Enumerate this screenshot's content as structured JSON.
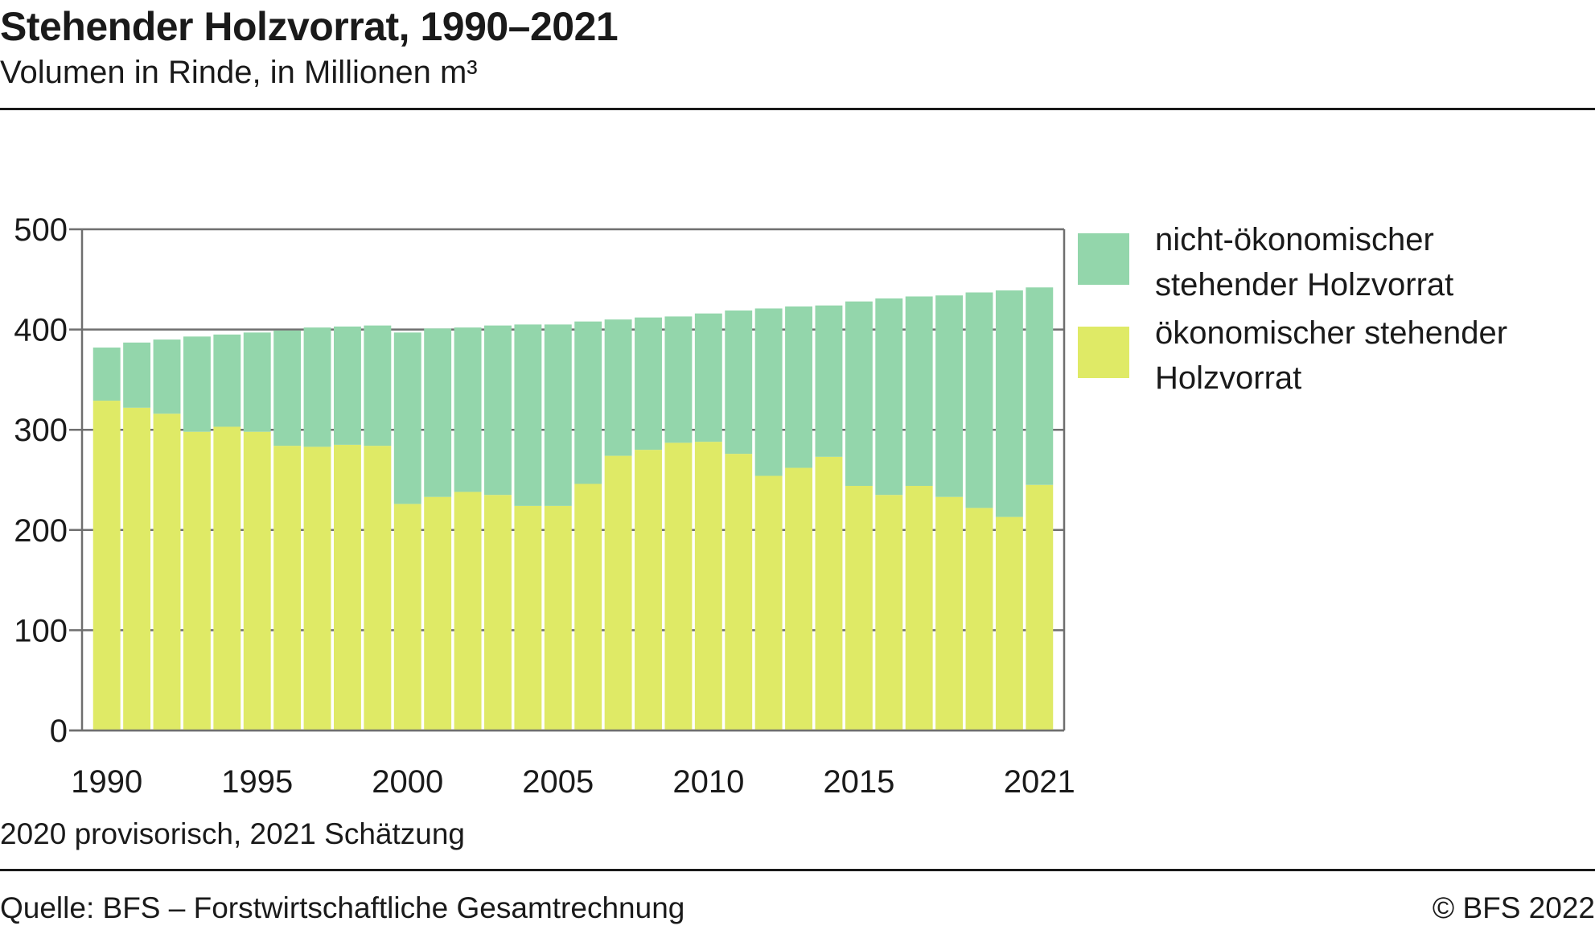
{
  "header": {
    "title": "Stehender Holzvorrat, 1990–2021",
    "subtitle": "Volumen in Rinde, in Millionen m³"
  },
  "footer": {
    "note": "2020 provisorisch, 2021 Schätzung",
    "source": "Quelle: BFS – Forstwirtschaftliche Gesamtrechnung",
    "copyright": "© BFS 2022"
  },
  "colors": {
    "economic": "#dfea66",
    "non_economic": "#93d6ab",
    "grid": "#6f6f6f",
    "text": "#1a1a1a"
  },
  "chart_data": {
    "type": "bar",
    "stacked": true,
    "categories": [
      "1990",
      "1991",
      "1992",
      "1993",
      "1994",
      "1995",
      "1996",
      "1997",
      "1998",
      "1999",
      "2000",
      "2001",
      "2002",
      "2003",
      "2004",
      "2005",
      "2006",
      "2007",
      "2008",
      "2009",
      "2010",
      "2011",
      "2012",
      "2013",
      "2014",
      "2015",
      "2016",
      "2017",
      "2018",
      "2019",
      "2020",
      "2021"
    ],
    "x_tick_labels": [
      "1990",
      "1995",
      "2000",
      "2005",
      "2010",
      "2015",
      "2021"
    ],
    "series": [
      {
        "name": "ökonomischer stehender Holzvorrat",
        "color": "#dfea66",
        "values": [
          329,
          322,
          316,
          298,
          303,
          298,
          284,
          283,
          285,
          284,
          226,
          233,
          238,
          235,
          224,
          224,
          246,
          274,
          280,
          287,
          288,
          276,
          254,
          262,
          273,
          244,
          235,
          244,
          233,
          222,
          213,
          245
        ]
      },
      {
        "name": "nicht-ökonomischer stehender Holzvorrat",
        "color": "#93d6ab",
        "values": [
          53,
          65,
          74,
          95,
          92,
          99,
          115,
          119,
          118,
          120,
          171,
          168,
          164,
          169,
          181,
          181,
          162,
          136,
          132,
          126,
          128,
          143,
          167,
          161,
          151,
          184,
          196,
          189,
          201,
          215,
          226,
          197
        ]
      }
    ],
    "y_ticks": [
      0,
      100,
      200,
      300,
      400,
      500
    ],
    "ylim": [
      0,
      500
    ],
    "grid": true,
    "legend_placement": "right",
    "legend_labels": {
      "non_economic": "nicht-ökonomischer stehender Holzvorrat",
      "economic": "ökonomischer stehender Holzvorrat"
    }
  }
}
